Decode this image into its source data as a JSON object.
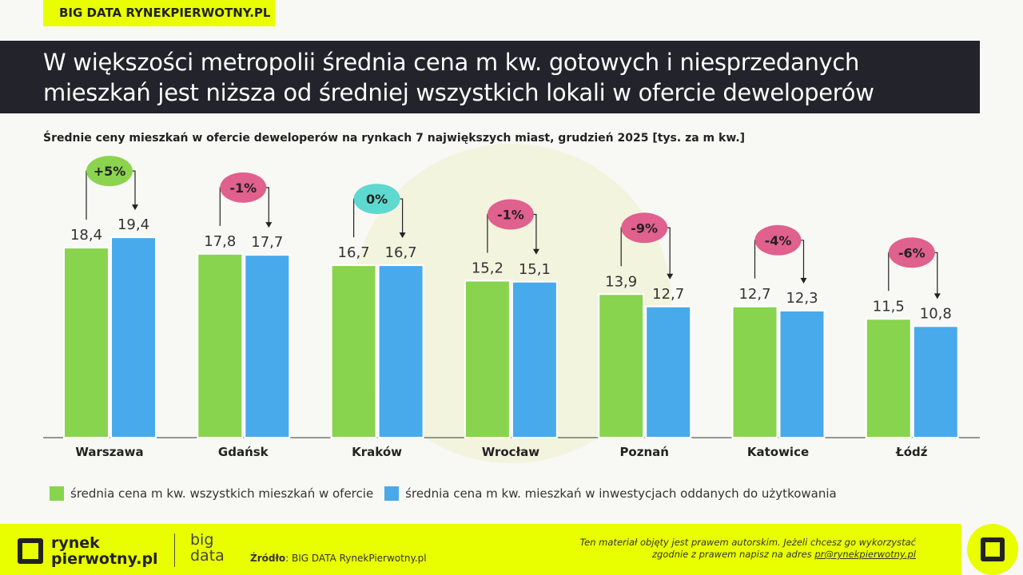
{
  "tag": "BIG DATA RYNEKPIERWOTNY.PL",
  "title_line1": "W większości metropolii średnia cena m kw. gotowych i niesprzedanych",
  "title_line2": "mieszkań jest niższa od średniej wszystkich lokali w ofercie deweloperów",
  "chart_data": {
    "type": "bar",
    "title": "Średnie ceny mieszkań w ofercie deweloperów na rynkach 7 największych miast, grudzień 2025 [tys. za m kw.]",
    "categories": [
      "Warszawa",
      "Gdańsk",
      "Kraków",
      "Wrocław",
      "Poznań",
      "Katowice",
      "Łódź"
    ],
    "series": [
      {
        "name": "średnia cena m kw. wszystkich mieszkań w ofercie",
        "color": "#88d44e",
        "values": [
          18.4,
          17.8,
          16.7,
          15.2,
          13.9,
          12.7,
          11.5
        ],
        "labels": [
          "18,4",
          "17,8",
          "16,7",
          "15,2",
          "13,9",
          "12,7",
          "11,5"
        ]
      },
      {
        "name": "średnia cena m kw. mieszkań w inwestycjach oddanych do użytkowania",
        "color": "#48aaeb",
        "values": [
          19.4,
          17.7,
          16.7,
          15.1,
          12.7,
          12.3,
          10.8
        ],
        "labels": [
          "19,4",
          "17,7",
          "16,7",
          "15,1",
          "12,7",
          "12,3",
          "10,8"
        ]
      }
    ],
    "changes": [
      "+5%",
      "-1%",
      "0%",
      "-1%",
      "-9%",
      "-4%",
      "-6%"
    ],
    "change_colors": {
      "positive": "#8cd44f",
      "negative": "#e0608e",
      "zero": "#5ed9d0"
    },
    "ylim": [
      0,
      20
    ],
    "grid": false,
    "legend": "bottom"
  },
  "footer": {
    "logo_line1": "rynek",
    "logo_line2": "pierwotny.pl",
    "bd_line1": "big",
    "bd_line2": "data",
    "source_label": "Źródło",
    "source_text": ": BIG DATA RynekPierwotny.pl",
    "copy_line1": "Ten materiał objęty jest prawem autorskim. Jeżeli chcesz go wykorzystać",
    "copy_line2": "zgodnie z prawem napisz na adres ",
    "copy_email": "pr@rynekpierwotny.pl"
  }
}
